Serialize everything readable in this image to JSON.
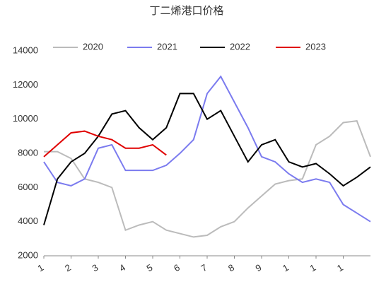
{
  "chart_data": {
    "type": "line",
    "title": "丁二烯港口价格",
    "x": [
      1,
      1.5,
      2,
      2.5,
      3,
      3.5,
      4,
      4.5,
      5,
      5.5,
      6,
      6.5,
      7,
      7.5,
      8,
      8.5,
      9,
      9.5,
      10,
      10.5,
      11,
      11.5,
      12,
      12.5,
      13
    ],
    "series": [
      {
        "name": "2020",
        "color": "#bbbbbb",
        "values": [
          8100,
          8100,
          7700,
          6500,
          6300,
          6000,
          3500,
          3800,
          4000,
          3500,
          3300,
          3100,
          3200,
          3700,
          4000,
          4800,
          5500,
          6200,
          6400,
          6500,
          8500,
          9000,
          9800,
          9900,
          7800
        ]
      },
      {
        "name": "2021",
        "color": "#7b7bef",
        "values": [
          7500,
          6300,
          6100,
          6500,
          8300,
          8500,
          7000,
          7000,
          7000,
          7300,
          8000,
          8800,
          11500,
          12500,
          11000,
          9500,
          7800,
          7500,
          6800,
          6300,
          6500,
          6300,
          5000,
          4500,
          4000
        ]
      },
      {
        "name": "2022",
        "color": "#000000",
        "values": [
          3800,
          6500,
          7500,
          8000,
          9000,
          10300,
          10500,
          9500,
          8800,
          9500,
          11500,
          11500,
          10000,
          10500,
          9000,
          7500,
          8500,
          8800,
          7500,
          7200,
          7400,
          6800,
          6100,
          6600,
          7200
        ]
      },
      {
        "name": "2023",
        "color": "#e00000",
        "values": [
          7800,
          8500,
          9200,
          9300,
          9000,
          8800,
          8300,
          8300,
          8500,
          7900,
          null,
          null,
          null,
          null,
          null,
          null,
          null,
          null,
          null,
          null,
          null,
          null,
          null,
          null,
          null
        ]
      }
    ],
    "xlim": [
      1,
      13
    ],
    "xticks": [
      1,
      2,
      3,
      4,
      5,
      6,
      7,
      8,
      9,
      {
        "value": 10,
        "label": "1"
      },
      {
        "value": 11,
        "label": "1"
      },
      {
        "value": 12,
        "label": "1"
      }
    ],
    "ylim": [
      2000,
      14000
    ],
    "yticks": [
      2000,
      4000,
      6000,
      8000,
      10000,
      12000,
      14000
    ],
    "grid": false,
    "legend": "top"
  }
}
